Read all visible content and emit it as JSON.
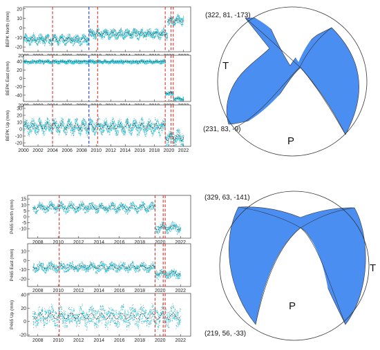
{
  "chart_data": [
    {
      "type": "scatter",
      "station": "BEPK",
      "xlim": [
        2000,
        2023
      ],
      "xticks": [
        "2000",
        "2002",
        "2004",
        "2006",
        "2008",
        "2010",
        "2012",
        "2014",
        "2016",
        "2018",
        "2020",
        "2022"
      ],
      "vlines_red": [
        2004.0,
        2010.2,
        2019.5,
        2020.3,
        2020.6
      ],
      "vlines_blue": [
        2009.0
      ],
      "panels": [
        {
          "ylabel": "BEPK North (mm)",
          "ylim": [
            -25,
            22
          ],
          "yticks": [
            "-20",
            "-10",
            "0",
            "10",
            "20"
          ],
          "segments": [
            [
              2000.0,
              2009.0,
              -12
            ],
            [
              2009.0,
              2019.8,
              -6
            ],
            [
              2019.8,
              2022.0,
              8
            ]
          ],
          "spread": 4,
          "amp": 2
        },
        {
          "ylabel": "BEPK East (mm)",
          "ylim": [
            -55,
            55
          ],
          "yticks": [
            "-40",
            "-20",
            "0",
            "20",
            "40"
          ],
          "segments": [
            [
              2000.0,
              2019.5,
              40
            ],
            [
              2019.5,
              2020.6,
              -35
            ],
            [
              2020.6,
              2022.0,
              -48
            ]
          ],
          "spread": 4,
          "amp": 1
        },
        {
          "ylabel": "BEPK Up (mm)",
          "ylim": [
            -25,
            35
          ],
          "yticks": [
            "-20",
            "-10",
            "0",
            "10",
            "20",
            "30"
          ],
          "segments": [
            [
              2000.0,
              2019.5,
              4
            ],
            [
              2019.5,
              2022.0,
              -12
            ]
          ],
          "spread": 8,
          "amp": 5
        }
      ]
    },
    {
      "type": "scatter",
      "station": "P465",
      "xlim": [
        2007,
        2023
      ],
      "xticks": [
        "2008",
        "2010",
        "2012",
        "2014",
        "2016",
        "2018",
        "2020",
        "2022"
      ],
      "vlines_red": [
        2010.1,
        2019.5,
        2020.3,
        2020.5
      ],
      "vlines_blue": [],
      "panels": [
        {
          "ylabel": "P465 North (mm)",
          "ylim": [
            -18,
            18
          ],
          "yticks": [
            "-10",
            "-5",
            "0",
            "5",
            "10",
            "15"
          ],
          "segments": [
            [
              2007.5,
              2019.5,
              8
            ],
            [
              2019.5,
              2022.0,
              -9
            ]
          ],
          "spread": 3,
          "amp": 2
        },
        {
          "ylabel": "P465 East (mm)",
          "ylim": [
            -28,
            18
          ],
          "yticks": [
            "-20",
            "-10",
            "0",
            "10"
          ],
          "segments": [
            [
              2007.5,
              2019.5,
              -7
            ],
            [
              2019.5,
              2022.0,
              -14
            ]
          ],
          "spread": 4,
          "amp": 2
        },
        {
          "ylabel": "P465 Up (mm)",
          "ylim": [
            -22,
            42
          ],
          "yticks": [
            "-20",
            "0",
            "20",
            "40"
          ],
          "segments": [
            [
              2007.5,
              2022.0,
              8
            ]
          ],
          "spread": 12,
          "amp": 5
        }
      ]
    }
  ],
  "mechanisms": [
    {
      "top_label": "(322, 81, -173)",
      "bottom_label": "(231, 83, -9)",
      "t_label": "T",
      "p_label": "P",
      "color": "#4b8ef2"
    },
    {
      "top_label": "(329, 63, -141)",
      "bottom_label": "(219, 56, -33)",
      "t_label": "T",
      "p_label": "P",
      "color": "#4b8ef2"
    }
  ]
}
